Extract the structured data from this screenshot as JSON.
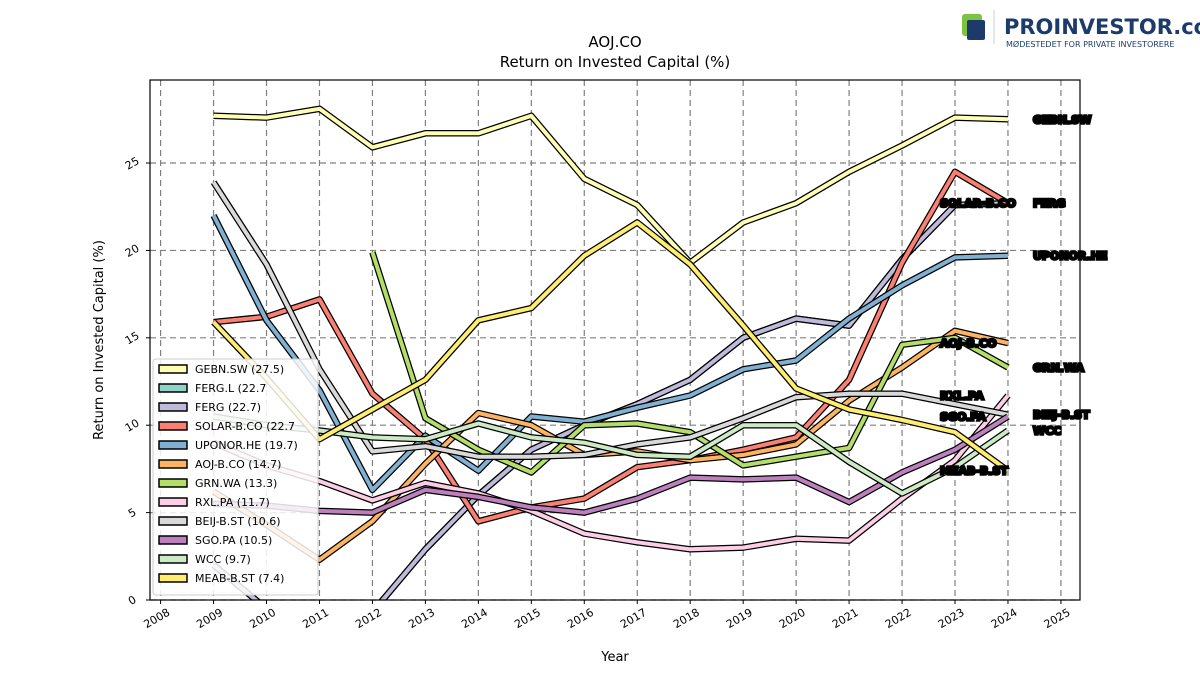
{
  "logo": {
    "brand": "PROINVESTOR.com",
    "tagline": "MØDESTEDET FOR PRIVATE INVESTORERE"
  },
  "chart_data": {
    "type": "line",
    "title": "AOJ.CO",
    "subtitle": "Return on Invested Capital (%)",
    "x_label": "Year",
    "y_label": "Return on Invested Capital (%)",
    "x": [
      2009,
      2010,
      2011,
      2012,
      2013,
      2014,
      2015,
      2016,
      2017,
      2018,
      2019,
      2020,
      2021,
      2022,
      2023,
      2024
    ],
    "xlim": [
      2007.8,
      2025.36
    ],
    "xticks": [
      2008,
      2009,
      2010,
      2011,
      2012,
      2013,
      2014,
      2015,
      2016,
      2017,
      2018,
      2019,
      2020,
      2021,
      2022,
      2023,
      2024,
      2025
    ],
    "ylim": [
      0,
      29.75
    ],
    "yticks": [
      0,
      5,
      10,
      15,
      20,
      25
    ],
    "grid": true,
    "legend": "lower left",
    "series": [
      {
        "name": "GEBN.SW (27.5)",
        "label": "GEBN.SW",
        "color": "#ffffb3",
        "values": [
          27.7,
          27.6,
          28.1,
          25.9,
          26.7,
          26.7,
          27.7,
          24.1,
          22.6,
          19.3,
          21.6,
          22.7,
          24.5,
          26.0,
          27.6,
          27.5
        ]
      },
      {
        "name": "FERG.L (22.7",
        "color": "#8dd3c7",
        "values": [
          2.0,
          -0.5,
          -3.5,
          -0.7,
          2.9,
          6.0,
          8.6,
          10.0,
          11.2,
          12.6,
          15.0,
          16.1,
          15.7,
          19.5,
          22.6,
          22.7
        ]
      },
      {
        "name": "FERG (22.7)",
        "label": "FERG",
        "color": "#bebada",
        "values": [
          2.0,
          -0.5,
          -3.5,
          -0.7,
          2.9,
          6.0,
          8.6,
          10.0,
          11.2,
          12.6,
          15.0,
          16.1,
          15.7,
          19.5,
          22.6,
          22.7
        ]
      },
      {
        "name": "SOLAR-B.CO (22.7",
        "label": "SOLAR-B.CO",
        "color": "#fb8072",
        "values": [
          15.9,
          16.2,
          17.2,
          11.8,
          9.2,
          4.5,
          5.3,
          5.8,
          7.6,
          8.0,
          8.6,
          9.3,
          12.6,
          19.3,
          24.5,
          22.7
        ]
      },
      {
        "name": "UPONOR.HE (19.7)",
        "label": "UPONOR.HE",
        "color": "#80b1d3",
        "values": [
          22.0,
          16.0,
          12.0,
          6.3,
          9.4,
          7.4,
          10.5,
          10.2,
          11.0,
          11.7,
          13.2,
          13.7,
          16.1,
          18.0,
          19.6,
          19.7
        ]
      },
      {
        "name": "AOJ-B.CO (14.7)",
        "label": "AOJ-B.CO",
        "color": "#fdb462",
        "values": [
          6.2,
          4.3,
          2.3,
          4.5,
          7.8,
          10.7,
          10.0,
          8.3,
          8.5,
          8.0,
          8.3,
          8.9,
          11.4,
          13.3,
          15.4,
          14.7
        ]
      },
      {
        "name": "GRN.WA (13.3)",
        "label": "GRN.WA",
        "color": "#b3de69",
        "values": [
          null,
          null,
          null,
          19.9,
          10.4,
          8.6,
          7.3,
          10.0,
          10.1,
          9.6,
          7.7,
          8.2,
          8.7,
          14.6,
          15.0,
          13.3
        ]
      },
      {
        "name": "RXL.PA (11.7)",
        "label": "RXL.PA",
        "color": "#fccde5",
        "values": [
          9.0,
          7.7,
          6.8,
          5.7,
          6.7,
          6.1,
          5.1,
          3.8,
          3.3,
          2.9,
          3.0,
          3.5,
          3.4,
          5.8,
          8.0,
          11.7
        ]
      },
      {
        "name": "BEIJ-B.ST (10.6)",
        "label": "BEIJ-B.ST",
        "color": "#d9d9d9",
        "values": [
          23.9,
          19.2,
          13.2,
          8.5,
          8.8,
          8.2,
          8.2,
          8.3,
          8.9,
          9.3,
          10.4,
          11.6,
          11.8,
          11.8,
          11.2,
          10.6
        ]
      },
      {
        "name": "SGO.PA (10.5)",
        "label": "SGO.PA",
        "color": "#bc80bd",
        "values": [
          5.5,
          5.4,
          5.1,
          5.0,
          6.3,
          5.9,
          5.3,
          5.0,
          5.8,
          7.0,
          6.9,
          7.0,
          5.6,
          7.3,
          8.6,
          10.5
        ]
      },
      {
        "name": "WCC (9.7)",
        "label": "WCC",
        "color": "#ccebc5",
        "values": [
          10.5,
          10.0,
          9.7,
          9.3,
          9.2,
          10.1,
          9.3,
          9.0,
          8.3,
          8.2,
          10.0,
          10.0,
          7.9,
          6.1,
          7.6,
          9.7
        ]
      },
      {
        "name": "MEAB-B.ST (7.4)",
        "label": "MEAB-B.ST",
        "color": "#ffed6f",
        "values": [
          15.9,
          12.7,
          9.2,
          10.9,
          12.6,
          16.0,
          16.7,
          19.7,
          21.6,
          19.2,
          15.7,
          12.1,
          10.9,
          10.3,
          9.6,
          7.4
        ]
      }
    ]
  }
}
